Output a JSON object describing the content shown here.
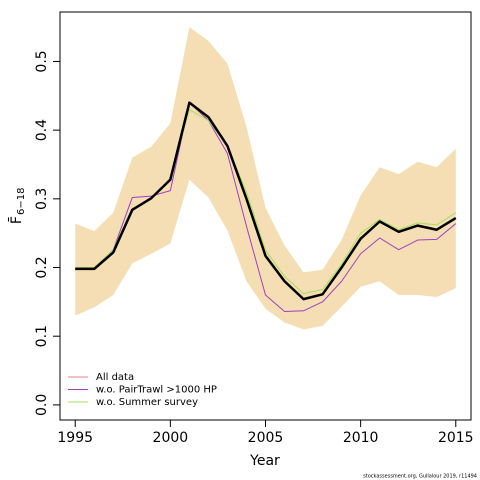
{
  "chart_data": {
    "type": "line",
    "xlabel": "Year",
    "ylabel": "F̄",
    "ylabel_sub": "6−18",
    "footnote": "stockassessment.org, Gullalour 2019, r11494",
    "x": [
      1995,
      1996,
      1997,
      1998,
      1999,
      2000,
      2001,
      2002,
      2003,
      2004,
      2005,
      2006,
      2007,
      2008,
      2009,
      2010,
      2011,
      2012,
      2013,
      2014,
      2015
    ],
    "band": {
      "color": "#f5deb3",
      "upper": [
        0.264,
        0.253,
        0.28,
        0.36,
        0.376,
        0.41,
        0.55,
        0.53,
        0.497,
        0.405,
        0.287,
        0.232,
        0.193,
        0.197,
        0.24,
        0.305,
        0.346,
        0.336,
        0.354,
        0.346,
        0.373
      ],
      "lower": [
        0.13,
        0.142,
        0.16,
        0.206,
        0.22,
        0.235,
        0.328,
        0.302,
        0.254,
        0.18,
        0.14,
        0.12,
        0.11,
        0.115,
        0.143,
        0.172,
        0.18,
        0.16,
        0.16,
        0.157,
        0.17
      ]
    },
    "series": [
      {
        "name": "All data",
        "color": "#000000",
        "legend_color": "#f08080",
        "width": 2.5,
        "values": [
          0.198,
          0.198,
          0.222,
          0.284,
          0.301,
          0.328,
          0.44,
          0.419,
          0.377,
          0.3,
          0.217,
          0.18,
          0.154,
          0.161,
          0.2,
          0.242,
          0.267,
          0.252,
          0.261,
          0.255,
          0.272
        ]
      },
      {
        "name": "w.o. PairTrawl >1000 HP",
        "color": "#a040c0",
        "width": 1,
        "values": [
          0.199,
          0.199,
          0.226,
          0.302,
          0.304,
          0.312,
          0.44,
          0.414,
          0.366,
          0.26,
          0.16,
          0.136,
          0.137,
          0.15,
          0.18,
          0.22,
          0.243,
          0.226,
          0.24,
          0.241,
          0.264
        ]
      },
      {
        "name": "w.o. Summer survey",
        "color": "#a6e05a",
        "width": 1,
        "values": [
          0.2,
          0.2,
          0.226,
          0.286,
          0.3,
          0.33,
          0.43,
          0.414,
          0.377,
          0.31,
          0.225,
          0.187,
          0.162,
          0.168,
          0.205,
          0.25,
          0.27,
          0.255,
          0.265,
          0.262,
          0.28
        ]
      }
    ],
    "xlim": [
      1994.2,
      2015.8
    ],
    "ylim": [
      -0.022,
      0.572
    ],
    "xticks": [
      1995,
      2000,
      2005,
      2010,
      2015
    ],
    "yticks": [
      {
        "value": 0,
        "label": "0.0"
      },
      0.1,
      0.2,
      0.3,
      0.4,
      0.5
    ],
    "legend": "bottom-left"
  }
}
